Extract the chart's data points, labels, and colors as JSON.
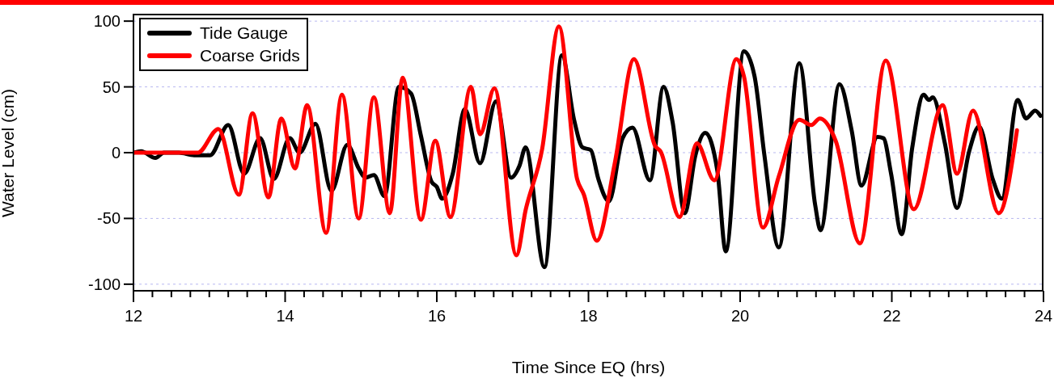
{
  "chart_data": {
    "type": "line",
    "xlabel": "Time Since EQ (hrs)",
    "ylabel": "Water Level (cm)",
    "xlim": [
      12,
      24
    ],
    "xticks": [
      12,
      {
        "value": 12.25,
        "label": null
      },
      {
        "value": 12.5,
        "label": null
      },
      {
        "value": 12.75,
        "label": null
      },
      {
        "value": 13,
        "label": null
      },
      {
        "value": 13.25,
        "label": null
      },
      {
        "value": 13.5,
        "label": null
      },
      {
        "value": 13.75,
        "label": null
      },
      14,
      {
        "value": 14.25,
        "label": null
      },
      {
        "value": 14.5,
        "label": null
      },
      {
        "value": 14.75,
        "label": null
      },
      {
        "value": 15,
        "label": null
      },
      {
        "value": 15.25,
        "label": null
      },
      {
        "value": 15.5,
        "label": null
      },
      {
        "value": 15.75,
        "label": null
      },
      16,
      {
        "value": 16.25,
        "label": null
      },
      {
        "value": 16.5,
        "label": null
      },
      {
        "value": 16.75,
        "label": null
      },
      {
        "value": 17,
        "label": null
      },
      {
        "value": 17.25,
        "label": null
      },
      {
        "value": 17.5,
        "label": null
      },
      {
        "value": 17.75,
        "label": null
      },
      18,
      {
        "value": 18.25,
        "label": null
      },
      {
        "value": 18.5,
        "label": null
      },
      {
        "value": 18.75,
        "label": null
      },
      {
        "value": 19,
        "label": null
      },
      {
        "value": 19.25,
        "label": null
      },
      {
        "value": 19.5,
        "label": null
      },
      {
        "value": 19.75,
        "label": null
      },
      20,
      {
        "value": 20.25,
        "label": null
      },
      {
        "value": 20.5,
        "label": null
      },
      {
        "value": 20.75,
        "label": null
      },
      {
        "value": 21,
        "label": null
      },
      {
        "value": 21.25,
        "label": null
      },
      {
        "value": 21.5,
        "label": null
      },
      {
        "value": 21.75,
        "label": null
      },
      22,
      {
        "value": 22.25,
        "label": null
      },
      {
        "value": 22.5,
        "label": null
      },
      {
        "value": 22.75,
        "label": null
      },
      {
        "value": 23,
        "label": null
      },
      {
        "value": 23.25,
        "label": null
      },
      {
        "value": 23.5,
        "label": null
      },
      {
        "value": 23.75,
        "label": null
      },
      24
    ],
    "ylim": [
      -105,
      105
    ],
    "yticks": [
      -100,
      -50,
      0,
      50,
      100
    ],
    "grid": "y",
    "legend": "top left",
    "marker": "none",
    "line_style": "solid",
    "series": [
      {
        "name": "Tide Gauge",
        "color": "#000000",
        "x": [
          12.0,
          12.1,
          12.29,
          12.4,
          12.6,
          12.8,
          13.01,
          13.25,
          13.46,
          13.67,
          13.85,
          14.06,
          14.19,
          14.4,
          14.61,
          14.82,
          14.97,
          15.06,
          15.17,
          15.31,
          15.5,
          15.66,
          15.79,
          15.93,
          16.0,
          16.07,
          16.21,
          16.37,
          16.57,
          16.78,
          16.98,
          17.09,
          17.17,
          17.42,
          17.65,
          17.81,
          17.92,
          18.03,
          18.13,
          18.27,
          18.45,
          18.58,
          18.81,
          18.99,
          19.11,
          19.27,
          19.41,
          19.54,
          19.7,
          19.81,
          20.05,
          20.19,
          20.32,
          20.51,
          20.78,
          20.99,
          21.06,
          21.31,
          21.47,
          21.6,
          21.81,
          21.89,
          21.99,
          22.13,
          22.27,
          22.42,
          22.49,
          22.54,
          22.7,
          22.86,
          23.02,
          23.15,
          23.33,
          23.45,
          23.66,
          23.77,
          23.89,
          23.96
        ],
        "values": [
          0,
          1,
          -4,
          0,
          0,
          -2,
          -2,
          21,
          -16,
          11,
          -20,
          11,
          0,
          22,
          -29,
          6,
          -12,
          -19,
          -17,
          -33,
          50,
          45,
          13,
          -22,
          -26,
          -35,
          -16,
          33,
          -8,
          39,
          -19,
          -10,
          4,
          -87,
          74,
          25,
          4,
          2,
          -20,
          -37,
          11,
          19,
          -21,
          50,
          23,
          -46,
          -2,
          15,
          -14,
          -75,
          77,
          58,
          -2,
          -72,
          68,
          -40,
          -59,
          52,
          17,
          -25,
          12,
          11,
          -16,
          -62,
          4,
          44,
          40,
          42,
          7,
          -42,
          1,
          20,
          -20,
          -35,
          40,
          26,
          32,
          28
        ]
      },
      {
        "name": "Coarse Grids",
        "color": "#ff0000",
        "x": [
          12.0,
          12.85,
          13.12,
          13.39,
          13.57,
          13.78,
          13.95,
          14.13,
          14.29,
          14.54,
          14.75,
          14.97,
          15.17,
          15.38,
          15.55,
          15.79,
          15.98,
          16.18,
          16.45,
          16.57,
          16.76,
          17.05,
          17.17,
          17.39,
          17.61,
          17.85,
          17.94,
          18.11,
          18.35,
          18.6,
          18.88,
          18.95,
          19.2,
          19.43,
          19.66,
          19.95,
          20.05,
          20.3,
          20.51,
          20.78,
          20.94,
          21.05,
          21.26,
          21.58,
          21.92,
          22.29,
          22.67,
          22.86,
          23.07,
          23.41,
          23.65
        ],
        "values": [
          0,
          0,
          18,
          -32,
          30,
          -34,
          26,
          -12,
          36,
          -61,
          44,
          -50,
          42,
          -46,
          57,
          -51,
          9,
          -49,
          50,
          14,
          49,
          -78,
          -44,
          3,
          96,
          -20,
          -32,
          -67,
          -7,
          71,
          5,
          1,
          -49,
          7,
          -21,
          71,
          58,
          -57,
          -18,
          25,
          21,
          26,
          9,
          -69,
          70,
          -43,
          36,
          -16,
          32,
          -46,
          17
        ]
      }
    ]
  }
}
